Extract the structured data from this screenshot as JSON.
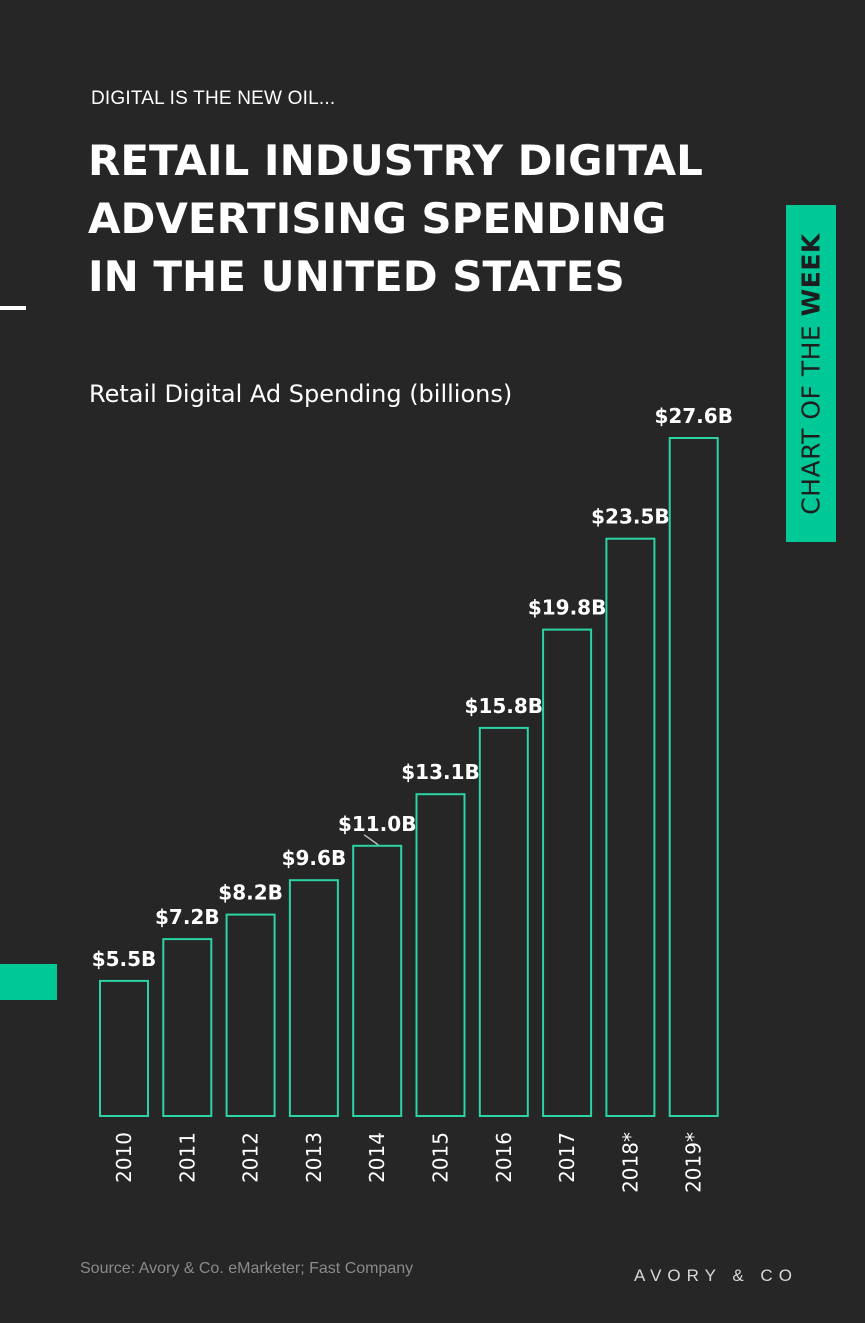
{
  "header": {
    "kicker": "DIGITAL IS THE NEW OIL...",
    "title_lines": [
      "RETAIL INDUSTRY DIGITAL",
      "ADVERTISING SPENDING",
      "IN THE UNITED STATES"
    ]
  },
  "side_tab": {
    "prefix": "CHART OF THE ",
    "emphasis": "WEEK"
  },
  "footer": {
    "source": "Source: Avory & Co. eMarketer; Fast Company",
    "brand": "AVORY & CO"
  },
  "colors": {
    "background": "#262626",
    "accent": "#00c896",
    "bar_outline": "#2bd3a6",
    "text": "#ffffff",
    "muted": "#8a8a8a"
  },
  "chart_data": {
    "type": "bar",
    "title": "Retail Digital Ad Spending (billions)",
    "categories": [
      "2010",
      "2011",
      "2012",
      "2013",
      "2014",
      "2015",
      "2016",
      "2017",
      "2018*",
      "2019*"
    ],
    "values": [
      5.5,
      7.2,
      8.2,
      9.6,
      11.0,
      13.1,
      15.8,
      19.8,
      23.5,
      27.6
    ],
    "data_labels": [
      "$5.5B",
      "$7.2B",
      "$8.2B",
      "$9.6B",
      "$11.0B",
      "$13.1B",
      "$15.8B",
      "$19.8B",
      "$23.5B",
      "$27.6B"
    ],
    "xlabel": "",
    "ylabel": "",
    "ylim": [
      0,
      27.6
    ],
    "grid": false,
    "legend": "none"
  }
}
